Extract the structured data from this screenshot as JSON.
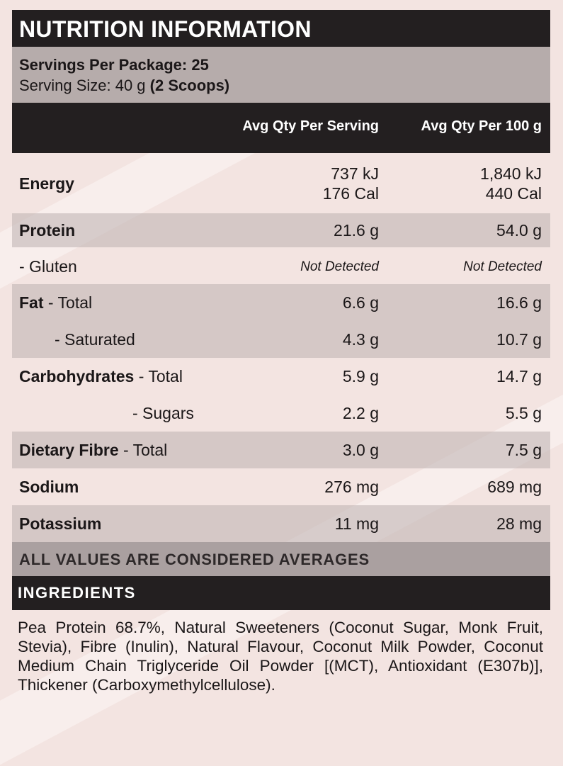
{
  "title": "NUTRITION INFORMATION",
  "servings": {
    "per_package": "Servings Per Package: 25",
    "size_prefix": "Serving Size: 40 g ",
    "size_bold": "(2 Scoops)"
  },
  "columns": {
    "per_serving": "Avg Qty Per Serving",
    "per_100g": "Avg Qty Per 100 g"
  },
  "rows": [
    {
      "label_bold": "Energy",
      "label_rest": "",
      "v1": "737 kJ",
      "v1b": "176 Cal",
      "v2": "1,840 kJ",
      "v2b": "440 Cal"
    },
    {
      "label_bold": "Protein",
      "label_rest": "",
      "v1": "21.6 g",
      "v2": "54.0 g"
    },
    {
      "label_bold": "",
      "label_rest": "- Gluten",
      "v1": "Not Detected",
      "v2": "Not Detected"
    },
    {
      "label_bold": "Fat",
      "label_rest": " - Total",
      "v1": "6.6 g",
      "v2": "16.6 g"
    },
    {
      "label_bold": "",
      "label_rest": "- Saturated",
      "v1": "4.3 g",
      "v2": "10.7 g"
    },
    {
      "label_bold": "Carbohydrates",
      "label_rest": " - Total",
      "v1": "5.9 g",
      "v2": "14.7 g"
    },
    {
      "label_bold": "",
      "label_rest": "- Sugars",
      "v1": "2.2 g",
      "v2": "5.5 g"
    },
    {
      "label_bold": "Dietary Fibre",
      "label_rest": " - Total",
      "v1": "3.0 g",
      "v2": "7.5 g"
    },
    {
      "label_bold": "Sodium",
      "label_rest": "",
      "v1": "276 mg",
      "v2": "689 mg"
    },
    {
      "label_bold": "Potassium",
      "label_rest": "",
      "v1": "11 mg",
      "v2": "28 mg"
    }
  ],
  "averages_note": "ALL VALUES ARE CONSIDERED AVERAGES",
  "ingredients_heading": "INGREDIENTS",
  "ingredients_text": "Pea Protein 68.7%, Natural Sweeteners (Coconut Sugar, Monk Fruit, Stevia), Fibre (Inulin), Natural Flavour, Coconut Milk Powder, Coconut Medium Chain Triglyceride Oil Powder [(MCT), Antioxidant (E307b)], Thickener (Carboxymethylcellulose)."
}
